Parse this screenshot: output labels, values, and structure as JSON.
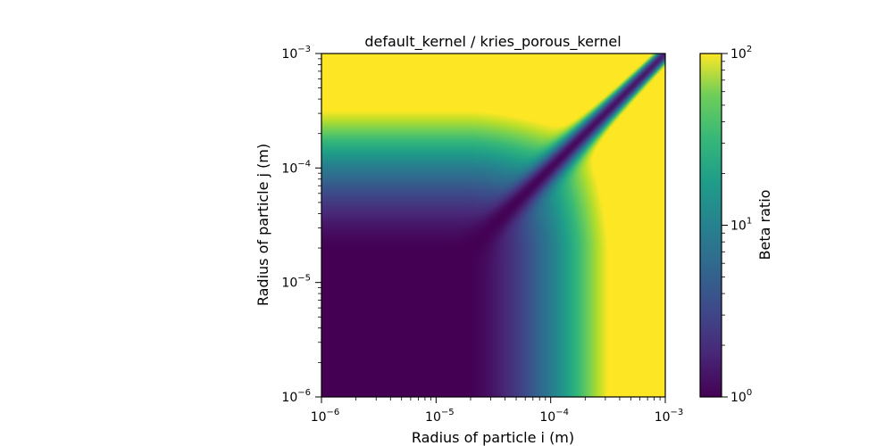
{
  "chart_data": {
    "type": "heatmap",
    "title": "default_kernel / kries_porous_kernel",
    "xlabel": "Radius of particle i (m)",
    "ylabel": "Radius of particle j (m)",
    "x_scale": "log",
    "y_scale": "log",
    "xlim": [
      1e-06,
      0.001
    ],
    "ylim": [
      1e-06,
      0.001
    ],
    "x_ticks": [
      {
        "value": 1e-06,
        "base": "10",
        "exp": "−6"
      },
      {
        "value": 1e-05,
        "base": "10",
        "exp": "−5"
      },
      {
        "value": 0.0001,
        "base": "10",
        "exp": "−4"
      },
      {
        "value": 0.001,
        "base": "10",
        "exp": "−3"
      }
    ],
    "y_ticks": [
      {
        "value": 1e-06,
        "base": "10",
        "exp": "−6"
      },
      {
        "value": 1e-05,
        "base": "10",
        "exp": "−5"
      },
      {
        "value": 0.0001,
        "base": "10",
        "exp": "−4"
      },
      {
        "value": 0.001,
        "base": "10",
        "exp": "−3"
      }
    ],
    "colorbar": {
      "label": "Beta ratio",
      "scale": "log",
      "colormap": "viridis",
      "range": [
        1,
        100
      ],
      "ticks": [
        {
          "value": 1,
          "base": "10",
          "exp": "0"
        },
        {
          "value": 10,
          "base": "10",
          "exp": "1"
        },
        {
          "value": 100,
          "base": "10",
          "exp": "2"
        }
      ]
    },
    "grid": false,
    "sample_values": {
      "description_of_grid": "approximate beta ratio at log10 radius grid points",
      "log10_r": [
        -6,
        -5.5,
        -5,
        -4.5,
        -4,
        -3.5,
        -3
      ],
      "rows_r_j_high_to_low": [
        [
          75,
          72,
          70,
          68,
          60,
          45,
          1.5
        ],
        [
          30,
          28,
          26,
          24,
          20,
          2.5,
          45
        ],
        [
          8,
          7,
          6.5,
          5.5,
          2.5,
          20,
          75
        ],
        [
          3.5,
          3.2,
          3,
          2.5,
          8,
          35,
          90
        ],
        [
          1.4,
          1.4,
          1.6,
          3,
          10,
          40,
          95
        ],
        [
          1.1,
          1.1,
          1.4,
          3,
          10,
          40,
          95
        ],
        [
          1.0,
          1.1,
          1.4,
          3,
          10,
          40,
          95
        ]
      ]
    }
  }
}
